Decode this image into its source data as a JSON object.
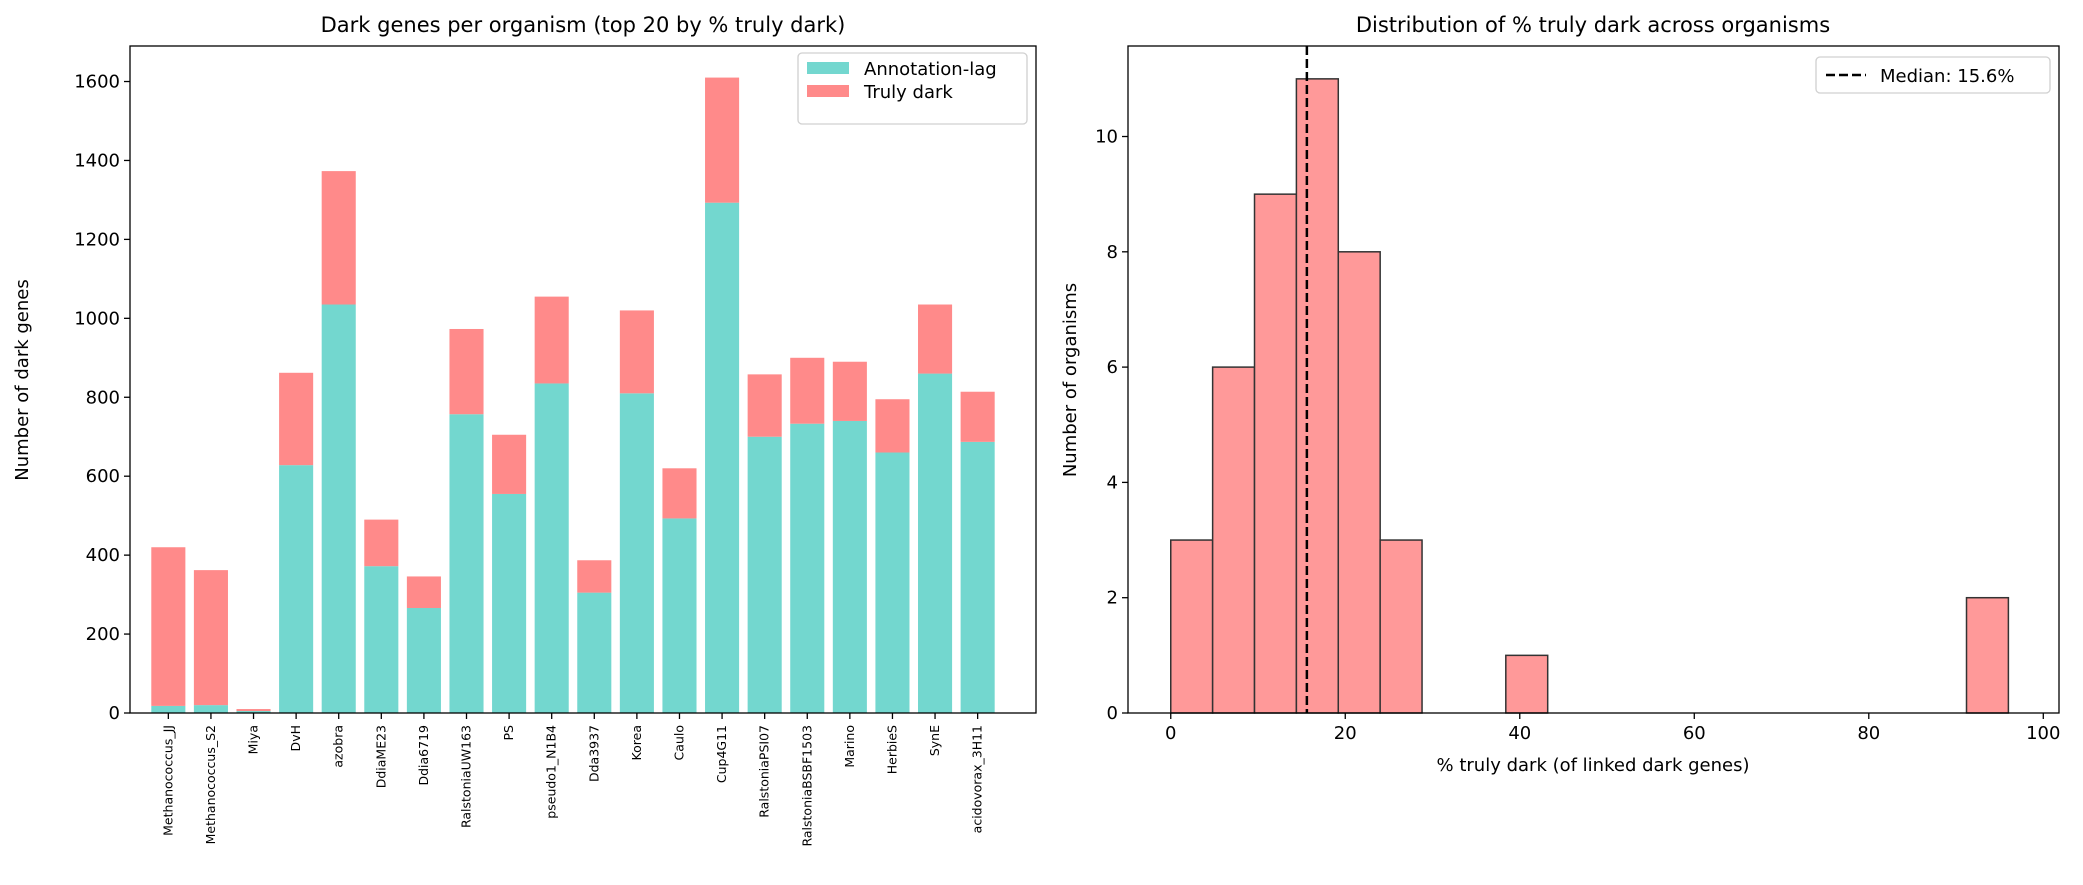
{
  "chart_data": [
    {
      "type": "bar",
      "stacked": true,
      "title": "Dark genes per organism (top 20 by % truly dark)",
      "xlabel": "",
      "ylabel": "Number of dark genes",
      "ylim": [
        0,
        1690
      ],
      "yticks": [
        0,
        200,
        400,
        600,
        800,
        1000,
        1200,
        1400,
        1600
      ],
      "grid": false,
      "legend_position": "top-right",
      "categories": [
        "Methanococcus_JJ",
        "Methanococcus_S2",
        "Miya",
        "DvH",
        "azobra",
        "DdiaME23",
        "Ddia6719",
        "RalstoniaUW163",
        "PS",
        "pseudo1_N1B4",
        "Dda3937",
        "Korea",
        "Caulo",
        "Cup4G11",
        "RalstoniaPSI07",
        "RalstoniaBSBF1503",
        "Marino",
        "HerbieS",
        "SynE",
        "acidovorax_3H11"
      ],
      "series": [
        {
          "name": "Annotation-lag",
          "color": "#73d7cf",
          "values": [
            18,
            20,
            5,
            628,
            1035,
            372,
            266,
            757,
            555,
            835,
            305,
            810,
            493,
            1293,
            700,
            733,
            740,
            660,
            860,
            687
          ]
        },
        {
          "name": "Truly dark",
          "color": "#ff8a8a",
          "values": [
            402,
            342,
            5,
            234,
            338,
            118,
            80,
            216,
            150,
            220,
            82,
            210,
            127,
            317,
            158,
            167,
            150,
            135,
            175,
            127
          ]
        }
      ]
    },
    {
      "type": "histogram",
      "title": "Distribution of % truly dark across organisms",
      "xlabel": "% truly dark (of linked dark genes)",
      "ylabel": "Number of organisms",
      "xlim": [
        -4.9,
        101.8
      ],
      "ylim": [
        0,
        11.57
      ],
      "xticks": [
        0,
        20,
        40,
        60,
        80,
        100
      ],
      "yticks": [
        0,
        2,
        4,
        6,
        8,
        10
      ],
      "grid": false,
      "legend_position": "top-right",
      "bar_color": "#ff9999",
      "bin_edges": [
        0,
        4.8,
        9.6,
        14.4,
        19.2,
        24,
        28.8,
        33.6,
        38.4,
        43.2,
        48,
        52.8,
        57.6,
        62.4,
        67.2,
        72,
        76.8,
        81.6,
        86.4,
        91.2,
        96
      ],
      "counts": [
        3,
        6,
        9,
        11,
        8,
        3,
        0,
        0,
        1,
        0,
        0,
        0,
        0,
        0,
        0,
        0,
        0,
        0,
        0,
        2
      ],
      "median": {
        "value": 15.6,
        "label": "Median: 15.6%"
      }
    }
  ]
}
